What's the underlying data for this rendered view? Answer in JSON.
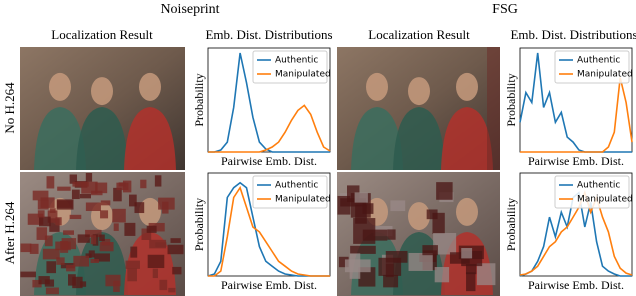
{
  "figure": {
    "groups": [
      "Noiseprint",
      "FSG"
    ],
    "columns": [
      "Localization Result",
      "Emb. Dist. Distributions",
      "Localization Result",
      "Emb. Dist. Distributions"
    ],
    "rows": [
      "No H.264",
      "After H.264"
    ]
  },
  "chart_data": [
    {
      "type": "line",
      "xlabel": "Pairwise Emb. Dist.",
      "ylabel": "Probability",
      "legend": "upper right",
      "x": [
        0,
        1,
        2,
        3,
        4,
        5,
        6,
        7,
        8,
        9,
        10,
        11,
        12,
        13,
        14,
        15,
        16,
        17,
        18,
        19
      ],
      "xlim": [
        0,
        19
      ],
      "ylim": [
        0,
        1.05
      ],
      "series": [
        {
          "name": "Authentic",
          "color": "#1f77b4",
          "values": [
            0,
            0,
            0.02,
            0.1,
            0.45,
            1.0,
            0.7,
            0.35,
            0.1,
            0.03,
            0,
            0,
            0,
            0,
            0,
            0,
            0,
            0,
            0,
            0
          ]
        },
        {
          "name": "Manipulated",
          "color": "#ff7f0e",
          "values": [
            0,
            0,
            0,
            0,
            0,
            0,
            0,
            0,
            0,
            0.02,
            0.05,
            0.1,
            0.2,
            0.32,
            0.42,
            0.47,
            0.38,
            0.2,
            0.05,
            0.01
          ]
        }
      ]
    },
    {
      "type": "line",
      "xlabel": "Pairwise Emb. Dist.",
      "ylabel": "Probability",
      "legend": "upper right",
      "x": [
        0,
        1,
        2,
        3,
        4,
        5,
        6,
        7,
        8,
        9,
        10,
        11,
        12,
        13,
        14,
        15,
        16,
        17,
        18,
        19
      ],
      "xlim": [
        0,
        19
      ],
      "ylim": [
        0,
        1.05
      ],
      "series": [
        {
          "name": "Authentic",
          "color": "#1f77b4",
          "values": [
            0.3,
            0.6,
            0.5,
            1.0,
            0.45,
            0.6,
            0.3,
            0.4,
            0.15,
            0.1,
            0.02,
            0,
            0,
            0,
            0,
            0,
            0,
            0,
            0,
            0
          ]
        },
        {
          "name": "Manipulated",
          "color": "#ff7f0e",
          "values": [
            0,
            0,
            0,
            0,
            0,
            0,
            0,
            0,
            0,
            0,
            0,
            0,
            0,
            0,
            0,
            0.05,
            0.2,
            0.75,
            0.5,
            0.1
          ]
        }
      ]
    },
    {
      "type": "line",
      "xlabel": "Pairwise Emb. Dist.",
      "ylabel": "Probability",
      "legend": "upper right",
      "x": [
        0,
        1,
        2,
        3,
        4,
        5,
        6,
        7,
        8,
        9,
        10,
        11,
        12,
        13,
        14,
        15,
        16,
        17,
        18,
        19
      ],
      "xlim": [
        0,
        19
      ],
      "ylim": [
        0,
        1.05
      ],
      "series": [
        {
          "name": "Authentic",
          "color": "#1f77b4",
          "values": [
            0,
            0.02,
            0.15,
            0.8,
            0.9,
            0.95,
            0.9,
            0.6,
            0.3,
            0.15,
            0.1,
            0.05,
            0.02,
            0.01,
            0,
            0,
            0,
            0,
            0,
            0
          ]
        },
        {
          "name": "Manipulated",
          "color": "#ff7f0e",
          "values": [
            0,
            0,
            0.05,
            0.4,
            0.8,
            0.9,
            0.7,
            0.5,
            0.45,
            0.35,
            0.25,
            0.15,
            0.1,
            0.05,
            0.02,
            0.01,
            0,
            0,
            0,
            0
          ]
        }
      ]
    },
    {
      "type": "line",
      "xlabel": "Pairwise Emb. Dist.",
      "ylabel": "Probability",
      "legend": "upper right",
      "x": [
        0,
        1,
        2,
        3,
        4,
        5,
        6,
        7,
        8,
        9,
        10,
        11,
        12,
        13,
        14,
        15,
        16,
        17,
        18,
        19
      ],
      "xlim": [
        0,
        19
      ],
      "ylim": [
        0,
        1.05
      ],
      "series": [
        {
          "name": "Authentic",
          "color": "#1f77b4",
          "values": [
            0,
            0.02,
            0.05,
            0.15,
            0.3,
            0.6,
            0.4,
            0.65,
            0.5,
            0.8,
            0.85,
            0.5,
            0.75,
            0.35,
            0.1,
            0.05,
            0.02,
            0,
            0,
            0
          ]
        },
        {
          "name": "Manipulated",
          "color": "#ff7f0e",
          "values": [
            0.01,
            0.02,
            0.05,
            0.1,
            0.2,
            0.3,
            0.35,
            0.45,
            0.5,
            0.6,
            0.7,
            0.85,
            0.65,
            0.8,
            0.6,
            0.45,
            0.2,
            0.08,
            0.03,
            0.01
          ]
        }
      ]
    }
  ]
}
